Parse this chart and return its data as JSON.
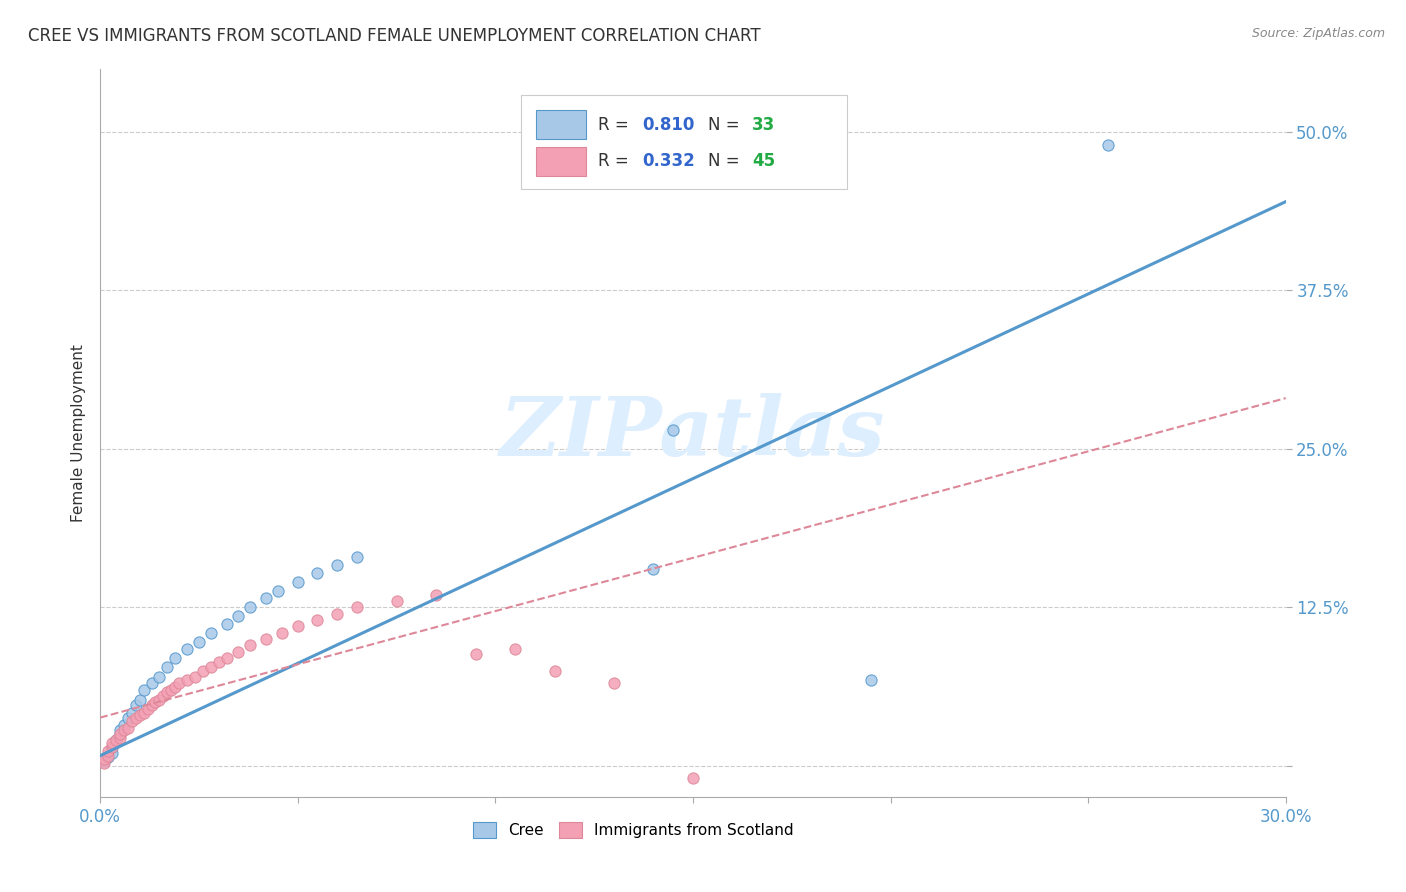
{
  "title": "CREE VS IMMIGRANTS FROM SCOTLAND FEMALE UNEMPLOYMENT CORRELATION CHART",
  "source": "Source: ZipAtlas.com",
  "ylabel": "Female Unemployment",
  "xlim": [
    0.0,
    0.3
  ],
  "ylim": [
    -0.025,
    0.55
  ],
  "ytick_vals": [
    0.0,
    0.125,
    0.25,
    0.375,
    0.5
  ],
  "ytick_labels": [
    "",
    "12.5%",
    "25.0%",
    "37.5%",
    "50.0%"
  ],
  "xtick_vals": [
    0.0,
    0.05,
    0.1,
    0.15,
    0.2,
    0.25,
    0.3
  ],
  "xtick_labels": [
    "0.0%",
    "",
    "",
    "",
    "",
    "",
    "30.0%"
  ],
  "cree_R": 0.81,
  "cree_N": 33,
  "scotland_R": 0.332,
  "scotland_N": 45,
  "cree_color": "#a8c8e8",
  "scotland_color": "#f4a0b4",
  "cree_line_color": "#5599cc",
  "scotland_line_color": "#dd8899",
  "legend_R_color": "#3366cc",
  "legend_N_color": "#22aa44",
  "watermark": "ZIPatlas",
  "background_color": "#ffffff",
  "grid_color": "#cccccc",
  "cree_x": [
    0.001,
    0.002,
    0.003,
    0.003,
    0.004,
    0.005,
    0.005,
    0.006,
    0.007,
    0.008,
    0.009,
    0.01,
    0.011,
    0.013,
    0.015,
    0.017,
    0.019,
    0.022,
    0.025,
    0.028,
    0.032,
    0.035,
    0.038,
    0.042,
    0.045,
    0.05,
    0.055,
    0.06,
    0.065,
    0.14,
    0.145,
    0.195,
    0.255
  ],
  "cree_y": [
    0.004,
    0.007,
    0.01,
    0.015,
    0.02,
    0.025,
    0.028,
    0.032,
    0.038,
    0.042,
    0.048,
    0.052,
    0.06,
    0.065,
    0.07,
    0.078,
    0.085,
    0.092,
    0.098,
    0.105,
    0.112,
    0.118,
    0.125,
    0.132,
    0.138,
    0.145,
    0.152,
    0.158,
    0.165,
    0.155,
    0.265,
    0.068,
    0.49
  ],
  "scotland_x": [
    0.001,
    0.001,
    0.002,
    0.002,
    0.003,
    0.003,
    0.004,
    0.005,
    0.005,
    0.006,
    0.007,
    0.008,
    0.009,
    0.01,
    0.011,
    0.012,
    0.013,
    0.014,
    0.015,
    0.016,
    0.017,
    0.018,
    0.019,
    0.02,
    0.022,
    0.024,
    0.026,
    0.028,
    0.03,
    0.032,
    0.035,
    0.038,
    0.042,
    0.046,
    0.05,
    0.055,
    0.06,
    0.065,
    0.075,
    0.085,
    0.095,
    0.105,
    0.115,
    0.13,
    0.15
  ],
  "scotland_y": [
    0.002,
    0.005,
    0.008,
    0.012,
    0.015,
    0.018,
    0.02,
    0.022,
    0.025,
    0.028,
    0.03,
    0.035,
    0.038,
    0.04,
    0.042,
    0.045,
    0.048,
    0.05,
    0.052,
    0.055,
    0.058,
    0.06,
    0.062,
    0.065,
    0.068,
    0.07,
    0.075,
    0.078,
    0.082,
    0.085,
    0.09,
    0.095,
    0.1,
    0.105,
    0.11,
    0.115,
    0.12,
    0.125,
    0.13,
    0.135,
    0.088,
    0.092,
    0.075,
    0.065,
    -0.01
  ],
  "cree_line_x": [
    0.0,
    0.3
  ],
  "cree_line_y": [
    0.008,
    0.445
  ],
  "scot_line_x": [
    0.0,
    0.3
  ],
  "scot_line_y": [
    0.038,
    0.29
  ]
}
